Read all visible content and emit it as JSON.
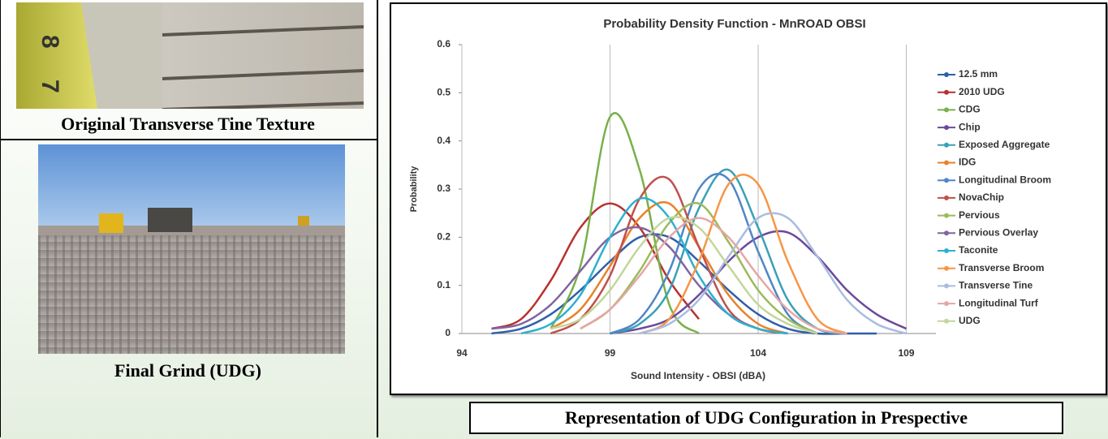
{
  "captions": {
    "top_photo": "Original Transverse Tine Texture",
    "bottom_photo": "Final Grind (UDG)",
    "chart_caption": "Representation of UDG Configuration in Prespective"
  },
  "chart_data": {
    "type": "line",
    "title": "Probability Density Function - MnROAD OBSI",
    "x_label": "Sound Intensity - OBSI (dBA)",
    "y_label": "Probability",
    "xlim": [
      94,
      110
    ],
    "xticks": [
      94,
      99,
      104,
      109
    ],
    "ylim": [
      0,
      0.6
    ],
    "yticks": [
      0,
      0.1,
      0.2,
      0.3,
      0.4,
      0.5,
      0.6
    ],
    "grid": true,
    "legend": "right",
    "smooth": true,
    "x": [
      95,
      96,
      97,
      98,
      99,
      100,
      101,
      102,
      103,
      104,
      105,
      106,
      107,
      108,
      109
    ],
    "series": [
      {
        "name": "12.5 mm",
        "color": "#2f5fa8",
        "values": [
          0,
          0.01,
          0.04,
          0.09,
          0.15,
          0.2,
          0.2,
          0.15,
          0.09,
          0.04,
          0.01,
          0,
          0,
          0,
          null
        ]
      },
      {
        "name": "2010 UDG",
        "color": "#b8312f",
        "values": [
          0.01,
          0.03,
          0.11,
          0.22,
          0.27,
          0.22,
          0.11,
          0.03,
          null,
          null,
          null,
          null,
          null,
          null,
          null
        ]
      },
      {
        "name": "CDG",
        "color": "#78b04a",
        "values": [
          null,
          null,
          0.01,
          0.14,
          0.45,
          0.34,
          0.06,
          0,
          null,
          null,
          null,
          null,
          null,
          null,
          null
        ]
      },
      {
        "name": "Chip",
        "color": "#6a4a9c",
        "values": [
          null,
          null,
          null,
          null,
          0,
          0.01,
          0.03,
          0.08,
          0.15,
          0.2,
          0.21,
          0.16,
          0.09,
          0.04,
          0.01
        ]
      },
      {
        "name": "Exposed Aggregate",
        "color": "#3aa0b8",
        "values": [
          null,
          null,
          null,
          null,
          0,
          0.02,
          0.09,
          0.26,
          0.34,
          0.22,
          0.07,
          0.01,
          0,
          null,
          null
        ]
      },
      {
        "name": "IDG",
        "color": "#e8822a",
        "values": [
          null,
          null,
          0.01,
          0.05,
          0.14,
          0.24,
          0.27,
          0.18,
          0.08,
          0.02,
          0,
          null,
          null,
          null,
          null
        ]
      },
      {
        "name": "Longitudinal Broom",
        "color": "#4f86c6",
        "values": [
          null,
          null,
          null,
          null,
          0,
          0.03,
          0.13,
          0.3,
          0.32,
          0.17,
          0.04,
          0,
          null,
          null,
          null
        ]
      },
      {
        "name": "NovaChip",
        "color": "#c0504d",
        "values": [
          null,
          null,
          0,
          0.03,
          0.12,
          0.28,
          0.32,
          0.18,
          0.05,
          0.01,
          0,
          null,
          null,
          null,
          null
        ]
      },
      {
        "name": "Pervious",
        "color": "#9bbb59",
        "values": [
          null,
          null,
          null,
          0.01,
          0.05,
          0.13,
          0.23,
          0.27,
          0.19,
          0.09,
          0.03,
          0,
          null,
          null,
          null
        ]
      },
      {
        "name": "Pervious Overlay",
        "color": "#8064a2",
        "values": [
          0.01,
          0.02,
          0.06,
          0.13,
          0.2,
          0.22,
          0.18,
          0.1,
          0.04,
          0.01,
          0,
          null,
          null,
          null,
          null
        ]
      },
      {
        "name": "Taconite",
        "color": "#2fb0d0",
        "values": [
          null,
          0,
          0.02,
          0.08,
          0.2,
          0.28,
          0.24,
          0.12,
          0.04,
          0.01,
          0,
          null,
          null,
          null,
          null
        ]
      },
      {
        "name": "Transverse Broom",
        "color": "#f79646",
        "values": [
          null,
          null,
          null,
          null,
          null,
          0,
          0.03,
          0.15,
          0.31,
          0.31,
          0.15,
          0.03,
          0,
          null,
          null
        ]
      },
      {
        "name": "Transverse Tine",
        "color": "#a9bce0",
        "values": [
          null,
          null,
          null,
          null,
          null,
          0,
          0.02,
          0.07,
          0.16,
          0.24,
          0.24,
          0.16,
          0.07,
          0.02,
          0
        ]
      },
      {
        "name": "Longitudinal Turf",
        "color": "#e6a6a6",
        "values": [
          null,
          null,
          null,
          0.01,
          0.05,
          0.12,
          0.2,
          0.24,
          0.2,
          0.12,
          0.05,
          0.01,
          0,
          null,
          null
        ]
      },
      {
        "name": "UDG",
        "color": "#c3d69b",
        "values": [
          null,
          null,
          0.01,
          0.03,
          0.09,
          0.18,
          0.24,
          0.22,
          0.14,
          0.06,
          0.02,
          0,
          null,
          null,
          null
        ]
      }
    ]
  }
}
